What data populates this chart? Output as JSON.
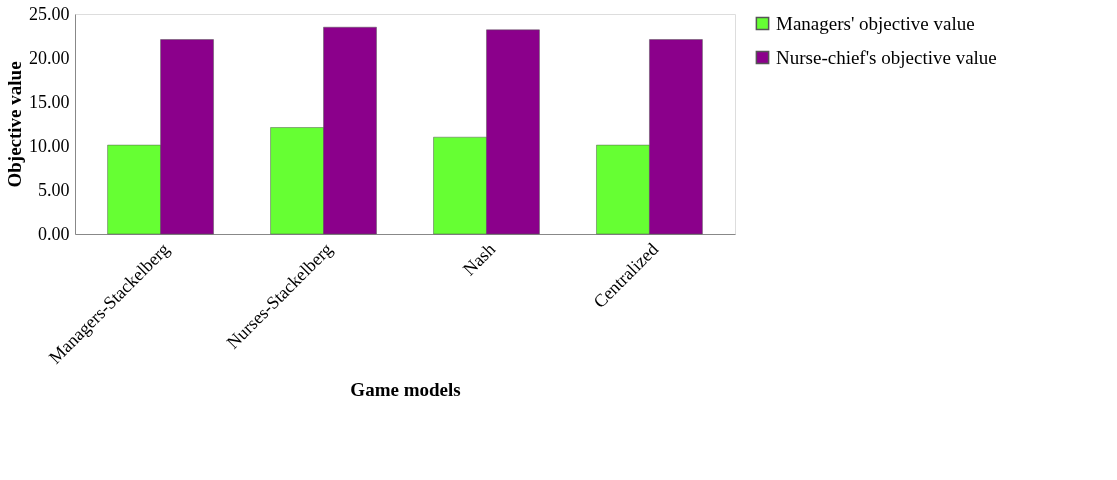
{
  "chart_data": {
    "type": "bar",
    "xlabel": "Game models",
    "ylabel": "Objective  value",
    "categories": [
      "Managers-Stackelberg",
      "Nurses-Stackelberg",
      "Nash",
      "Centralized"
    ],
    "series": [
      {
        "name": "Managers' objective value",
        "color": "#66ff33",
        "values": [
          10.1,
          12.1,
          11.0,
          10.1
        ]
      },
      {
        "name": "Nurse-chief's objective value",
        "color": "#8b008b",
        "values": [
          22.1,
          23.5,
          23.2,
          22.1
        ]
      }
    ],
    "ylim": [
      0,
      25
    ],
    "yticks": [
      {
        "value": 0,
        "label": "0.00"
      },
      {
        "value": 5,
        "label": "5.00"
      },
      {
        "value": 10,
        "label": "10.00"
      },
      {
        "value": 15,
        "label": "15.00"
      },
      {
        "value": 20,
        "label": "20.00"
      },
      {
        "value": 25,
        "label": "25.00"
      }
    ],
    "grid": false,
    "legend": "right"
  }
}
